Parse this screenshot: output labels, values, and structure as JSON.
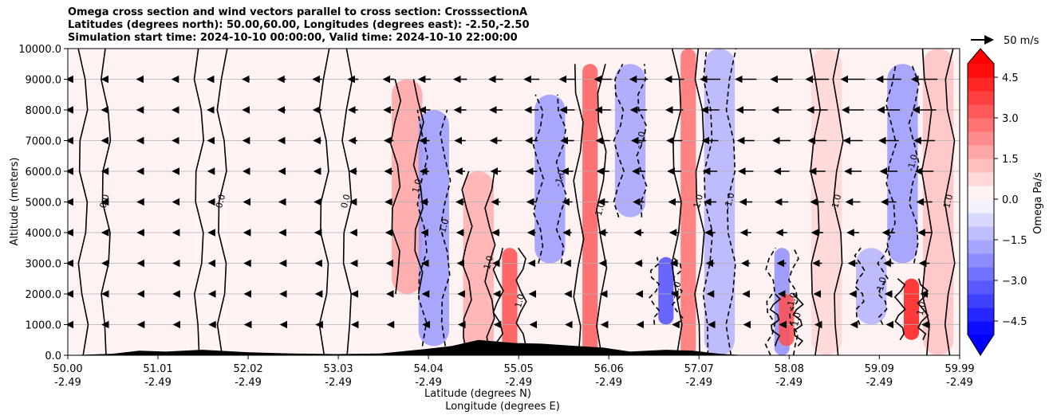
{
  "chart_data": {
    "type": "heatmap",
    "title_lines": [
      "Omega cross section and wind vectors parallel to cross section: CrosssectionA",
      "Latitudes (degrees north): 50.00,60.00, Longitudes (degrees east): -2.50,-2.50",
      "Simulation start time: 2024-10-10 00:00:00, Valid time: 2024-10-10 22:00:00"
    ],
    "xlabel_lat": "Latitude (degrees N)",
    "xlabel_lon": "Longitude (degrees E)",
    "ylabel": "Altitude (meters)",
    "xlim": [
      50.0,
      59.99
    ],
    "ylim": [
      0,
      10000
    ],
    "x_ticks": [
      {
        "lat": 50.0,
        "lat_label": "50.00",
        "lon_label": "-2.49"
      },
      {
        "lat": 51.01,
        "lat_label": "51.01",
        "lon_label": "-2.49"
      },
      {
        "lat": 52.02,
        "lat_label": "52.02",
        "lon_label": "-2.49"
      },
      {
        "lat": 53.03,
        "lat_label": "53.03",
        "lon_label": "-2.49"
      },
      {
        "lat": 54.04,
        "lat_label": "54.04",
        "lon_label": "-2.49"
      },
      {
        "lat": 55.05,
        "lat_label": "55.05",
        "lon_label": "-2.49"
      },
      {
        "lat": 56.06,
        "lat_label": "56.06",
        "lon_label": "-2.49"
      },
      {
        "lat": 57.07,
        "lat_label": "57.07",
        "lon_label": "-2.49"
      },
      {
        "lat": 58.08,
        "lat_label": "58.08",
        "lon_label": "-2.49"
      },
      {
        "lat": 59.09,
        "lat_label": "59.09",
        "lon_label": "-2.49"
      },
      {
        "lat": 59.99,
        "lat_label": "59.99",
        "lon_label": "-2.49"
      }
    ],
    "y_ticks": [
      {
        "value": 0,
        "label": "0.0"
      },
      {
        "value": 1000,
        "label": "1000.0"
      },
      {
        "value": 2000,
        "label": "2000.0"
      },
      {
        "value": 3000,
        "label": "3000.0"
      },
      {
        "value": 4000,
        "label": "4000.0"
      },
      {
        "value": 5000,
        "label": "5000.0"
      },
      {
        "value": 6000,
        "label": "6000.0"
      },
      {
        "value": 7000,
        "label": "7000.0"
      },
      {
        "value": 8000,
        "label": "8000.0"
      },
      {
        "value": 9000,
        "label": "9000.0"
      },
      {
        "value": 10000,
        "label": "10000.0"
      }
    ],
    "grid": true,
    "colorbar": {
      "label": "Omega Pa/s",
      "range": [
        -5,
        5
      ],
      "extend": "both",
      "ticks": [
        {
          "value": 4.5,
          "label": "4.5"
        },
        {
          "value": 3.0,
          "label": "3.0"
        },
        {
          "value": 1.5,
          "label": "1.5"
        },
        {
          "value": 0.0,
          "label": "0.0"
        },
        {
          "value": -1.5,
          "label": "−1.5"
        },
        {
          "value": -3.0,
          "label": "−3.0"
        },
        {
          "value": -4.5,
          "label": "−4.5"
        }
      ],
      "low_color": "#0000ff",
      "high_color": "#ff0000",
      "mid_color": "#ffffff"
    },
    "quiver_key": {
      "label": "50 m/s",
      "value": 50
    },
    "contour_labels": [
      "0.0",
      "1.0",
      "-1.0",
      "2.0",
      "-2.0"
    ],
    "omega_bands": [
      {
        "lat": 50.3,
        "alt_min": 0,
        "alt_max": 10000,
        "omega": 0.25
      },
      {
        "lat": 51.6,
        "alt_min": 0,
        "alt_max": 10000,
        "omega": 0.2
      },
      {
        "lat": 53.0,
        "alt_min": 0,
        "alt_max": 10000,
        "omega": 0.2
      },
      {
        "lat": 53.8,
        "alt_min": 2000,
        "alt_max": 9000,
        "omega": 1.8
      },
      {
        "lat": 54.1,
        "alt_min": 300,
        "alt_max": 8000,
        "omega": -2.0
      },
      {
        "lat": 54.6,
        "alt_min": 0,
        "alt_max": 6000,
        "omega": 1.6
      },
      {
        "lat": 54.95,
        "alt_min": 0,
        "alt_max": 3500,
        "omega": 3.5
      },
      {
        "lat": 55.4,
        "alt_min": 3000,
        "alt_max": 8500,
        "omega": -2.0
      },
      {
        "lat": 55.85,
        "alt_min": 0,
        "alt_max": 9500,
        "omega": 3.2
      },
      {
        "lat": 56.3,
        "alt_min": 4500,
        "alt_max": 9500,
        "omega": -1.8
      },
      {
        "lat": 56.7,
        "alt_min": 1000,
        "alt_max": 3200,
        "omega": -3.5
      },
      {
        "lat": 56.95,
        "alt_min": 0,
        "alt_max": 10000,
        "omega": 2.8
      },
      {
        "lat": 57.3,
        "alt_min": 0,
        "alt_max": 10000,
        "omega": -1.5
      },
      {
        "lat": 58.0,
        "alt_min": 0,
        "alt_max": 3500,
        "omega": -2.2
      },
      {
        "lat": 58.05,
        "alt_min": 300,
        "alt_max": 2000,
        "omega": 3.5
      },
      {
        "lat": 58.5,
        "alt_min": 0,
        "alt_max": 10000,
        "omega": 0.8
      },
      {
        "lat": 59.0,
        "alt_min": 1000,
        "alt_max": 3500,
        "omega": -1.5
      },
      {
        "lat": 59.35,
        "alt_min": 3000,
        "alt_max": 9500,
        "omega": -2.0
      },
      {
        "lat": 59.45,
        "alt_min": 500,
        "alt_max": 2500,
        "omega": 4.5
      },
      {
        "lat": 59.75,
        "alt_min": 0,
        "alt_max": 10000,
        "omega": 1.2
      }
    ],
    "terrain": [
      {
        "lat": 50.0,
        "alt": 0
      },
      {
        "lat": 50.5,
        "alt": 50
      },
      {
        "lat": 50.8,
        "alt": 150
      },
      {
        "lat": 51.1,
        "alt": 120
      },
      {
        "lat": 51.5,
        "alt": 180
      },
      {
        "lat": 52.0,
        "alt": 100
      },
      {
        "lat": 52.5,
        "alt": 60
      },
      {
        "lat": 53.0,
        "alt": 40
      },
      {
        "lat": 53.5,
        "alt": 60
      },
      {
        "lat": 54.0,
        "alt": 200
      },
      {
        "lat": 54.3,
        "alt": 300
      },
      {
        "lat": 54.6,
        "alt": 500
      },
      {
        "lat": 55.0,
        "alt": 400
      },
      {
        "lat": 55.3,
        "alt": 380
      },
      {
        "lat": 55.7,
        "alt": 300
      },
      {
        "lat": 56.0,
        "alt": 250
      },
      {
        "lat": 56.3,
        "alt": 120
      },
      {
        "lat": 56.7,
        "alt": 180
      },
      {
        "lat": 57.0,
        "alt": 150
      },
      {
        "lat": 57.3,
        "alt": 50
      },
      {
        "lat": 57.6,
        "alt": 0
      },
      {
        "lat": 59.99,
        "alt": 0
      }
    ]
  }
}
